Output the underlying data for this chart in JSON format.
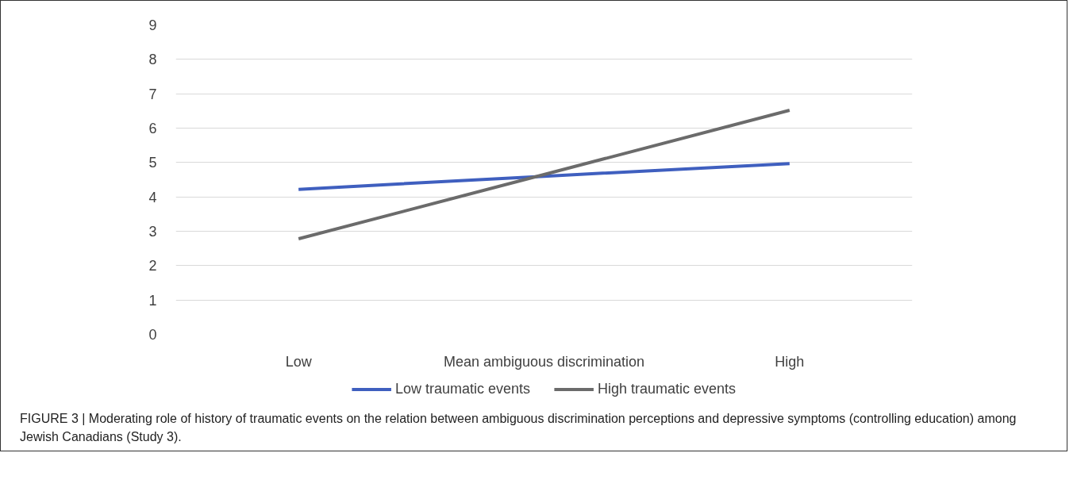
{
  "chart_data": {
    "type": "line",
    "categories": [
      "Low",
      "Mean ambiguous discrimination",
      "High"
    ],
    "series": [
      {
        "name": "Low traumatic events",
        "color": "#3f5fbf",
        "values": [
          4.22,
          4.6,
          4.97
        ]
      },
      {
        "name": "High traumatic events",
        "color": "#6b6b6b",
        "values": [
          2.78,
          4.65,
          6.52
        ]
      }
    ],
    "ylim": [
      0,
      9
    ],
    "yticks": [
      0,
      1,
      2,
      3,
      4,
      5,
      6,
      7,
      8,
      9
    ],
    "grid": "y",
    "legend": "bottom",
    "marker": "none",
    "line_style": "solid",
    "annotations": [
      "FIGURE 3 | Moderating role of history of traumatic events on the relation between ambiguous discrimination perceptions and depressive symptoms (controlling education) among Jewish Canadians (Study 3)."
    ]
  }
}
